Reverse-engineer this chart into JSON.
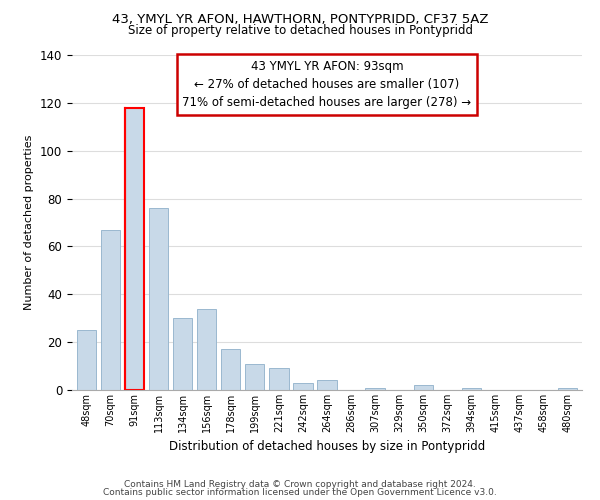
{
  "title": "43, YMYL YR AFON, HAWTHORN, PONTYPRIDD, CF37 5AZ",
  "subtitle": "Size of property relative to detached houses in Pontypridd",
  "xlabel": "Distribution of detached houses by size in Pontypridd",
  "ylabel": "Number of detached properties",
  "footer_line1": "Contains HM Land Registry data © Crown copyright and database right 2024.",
  "footer_line2": "Contains public sector information licensed under the Open Government Licence v3.0.",
  "bar_labels": [
    "48sqm",
    "70sqm",
    "91sqm",
    "113sqm",
    "134sqm",
    "156sqm",
    "178sqm",
    "199sqm",
    "221sqm",
    "242sqm",
    "264sqm",
    "286sqm",
    "307sqm",
    "329sqm",
    "350sqm",
    "372sqm",
    "394sqm",
    "415sqm",
    "437sqm",
    "458sqm",
    "480sqm"
  ],
  "bar_values": [
    25,
    67,
    118,
    76,
    30,
    34,
    17,
    11,
    9,
    3,
    4,
    0,
    1,
    0,
    2,
    0,
    1,
    0,
    0,
    0,
    1
  ],
  "bar_color": "#c8d9e8",
  "bar_edge_color": "#9ab8cf",
  "highlight_bar_index": 2,
  "highlight_edge_color": "#ff0000",
  "vline_color": "#ff0000",
  "annotation_title": "43 YMYL YR AFON: 93sqm",
  "annotation_line1": "← 27% of detached houses are smaller (107)",
  "annotation_line2": "71% of semi-detached houses are larger (278) →",
  "annotation_box_color": "#ffffff",
  "annotation_box_edge": "#cc0000",
  "ylim": [
    0,
    140
  ],
  "bg_color": "#ffffff",
  "grid_color": "#dddddd"
}
